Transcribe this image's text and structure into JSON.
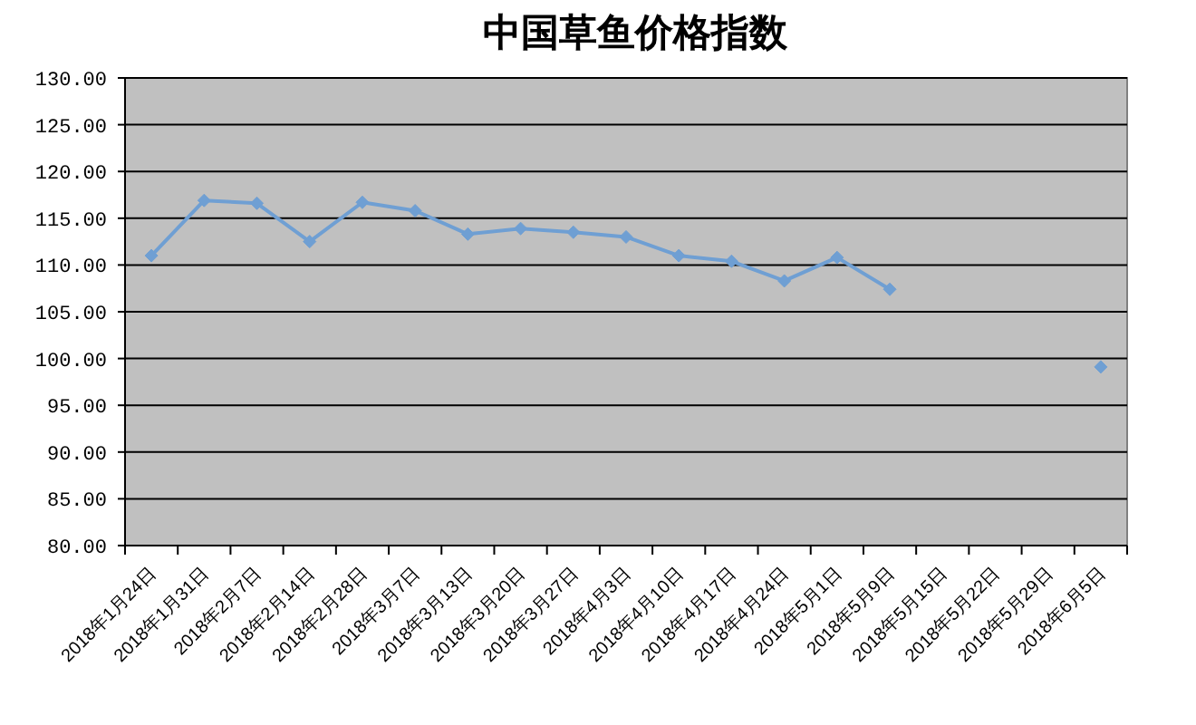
{
  "chart_data": {
    "type": "line",
    "title": "中国草鱼价格指数",
    "categories": [
      "2018年1月24日",
      "2018年1月31日",
      "2018年2月7日",
      "2018年2月14日",
      "2018年2月28日",
      "2018年3月7日",
      "2018年3月13日",
      "2018年3月20日",
      "2018年3月27日",
      "2018年4月3日",
      "2018年4月10日",
      "2018年4月17日",
      "2018年4月24日",
      "2018年5月1日",
      "2018年5月9日",
      "2018年5月15日",
      "2018年5月22日",
      "2018年5月29日",
      "2018年6月5日"
    ],
    "series": [
      {
        "color": "#6f9fd3",
        "values": [
          111.0,
          116.9,
          116.6,
          112.5,
          116.7,
          115.8,
          113.3,
          113.9,
          113.5,
          113.0,
          111.0,
          110.4,
          108.3,
          110.8,
          107.4,
          null,
          null,
          null,
          99.1
        ]
      }
    ],
    "ylim": [
      80,
      130
    ],
    "yticks": [
      {
        "value": 80,
        "label": "80.00"
      },
      {
        "value": 85,
        "label": "85.00"
      },
      {
        "value": 90,
        "label": "90.00"
      },
      {
        "value": 95,
        "label": "95.00"
      },
      {
        "value": 100,
        "label": "100.00"
      },
      {
        "value": 105,
        "label": "105.00"
      },
      {
        "value": 110,
        "label": "110.00"
      },
      {
        "value": 115,
        "label": "115.00"
      },
      {
        "value": 120,
        "label": "120.00"
      },
      {
        "value": 125,
        "label": "125.00"
      },
      {
        "value": 130,
        "label": "130.00"
      }
    ],
    "grid": "y",
    "marker": "diamond",
    "line_style": "solid"
  }
}
